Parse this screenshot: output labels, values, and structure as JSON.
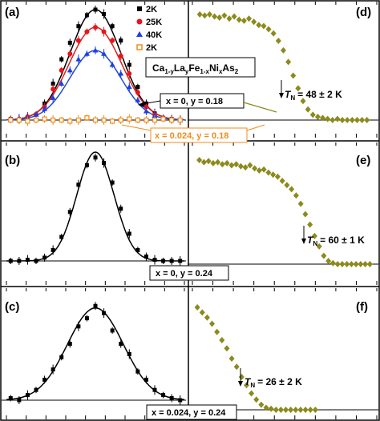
{
  "figure": {
    "compound_main": "Ca",
    "compound_parts": [
      {
        "t": "Ca",
        "sub": "1-y"
      },
      {
        "t": "La",
        "sub": "y"
      },
      {
        "t": "Fe",
        "sub": "1-x"
      },
      {
        "t": "Ni",
        "sub": "x"
      },
      {
        "t": "As",
        "sub": "2"
      }
    ],
    "label_a_sample": "x = 0, y = 0.18",
    "label_a2_sample": "x = 0.024, y = 0.18",
    "label_b_sample": "x = 0, y = 0.24",
    "label_c_sample": "x = 0.024, y = 0.24",
    "tn_d": "= 48 ± 2 K",
    "tn_e": "= 60 ± 1 K",
    "tn_f": "= 26 ± 2 K",
    "tn_symbol": "T",
    "tn_sub": "N",
    "colors": {
      "k2": "#000000",
      "k25": "#e8141c",
      "k40": "#1c3ee8",
      "k2b": "#f08c1a",
      "olive": "#8c8a1c",
      "fit_red": "#d8221c",
      "fit_blue": "#2450c8",
      "fit_black": "#000000"
    }
  },
  "chart_data": [
    {
      "type": "scatter",
      "panel": "(a)",
      "legend": [
        "2K",
        "25K",
        "40K",
        "2K"
      ],
      "legend_placement": "top-right",
      "series": [
        {
          "name": "2K",
          "marker": "square",
          "color": "#000000",
          "x": [
            -1.0,
            -0.9,
            -0.8,
            -0.7,
            -0.6,
            -0.5,
            -0.4,
            -0.3,
            -0.2,
            -0.1,
            0.0,
            0.1,
            0.2,
            0.3,
            0.4,
            0.5,
            0.6,
            0.7,
            0.8,
            0.9,
            1.0
          ],
          "y": [
            0.01,
            0.0,
            0.02,
            0.05,
            0.15,
            0.33,
            0.55,
            0.7,
            0.85,
            0.95,
            1.0,
            0.96,
            0.85,
            0.72,
            0.5,
            0.3,
            0.15,
            0.06,
            0.02,
            0.01,
            0.0
          ]
        },
        {
          "name": "25K",
          "marker": "circle",
          "color": "#e8141c",
          "x": [
            -1.0,
            -0.9,
            -0.8,
            -0.7,
            -0.6,
            -0.5,
            -0.4,
            -0.3,
            -0.2,
            -0.1,
            0.0,
            0.1,
            0.2,
            0.3,
            0.4,
            0.5,
            0.6,
            0.7,
            0.8,
            0.9,
            1.0
          ],
          "y": [
            0.01,
            0.01,
            0.03,
            0.05,
            0.12,
            0.28,
            0.45,
            0.6,
            0.72,
            0.8,
            0.84,
            0.8,
            0.72,
            0.58,
            0.42,
            0.25,
            0.12,
            0.05,
            0.02,
            0.01,
            0.0
          ]
        },
        {
          "name": "40K",
          "marker": "triangle",
          "color": "#1c3ee8",
          "x": [
            -1.0,
            -0.9,
            -0.8,
            -0.7,
            -0.6,
            -0.5,
            -0.4,
            -0.3,
            -0.2,
            -0.1,
            0.0,
            0.1,
            0.2,
            0.3,
            0.4,
            0.5,
            0.6,
            0.7,
            0.8,
            0.9,
            1.0
          ],
          "y": [
            0.0,
            0.02,
            0.02,
            0.05,
            0.1,
            0.2,
            0.33,
            0.45,
            0.55,
            0.6,
            0.63,
            0.6,
            0.5,
            0.42,
            0.3,
            0.18,
            0.08,
            0.04,
            0.02,
            0.01,
            0.0
          ]
        },
        {
          "name": "2K",
          "marker": "open-square",
          "color": "#f08c1a",
          "x": [
            -1.0,
            -0.9,
            -0.8,
            -0.7,
            -0.6,
            -0.5,
            -0.4,
            -0.3,
            -0.2,
            -0.1,
            0.0,
            0.1,
            0.2,
            0.3,
            0.4,
            0.5,
            0.6,
            0.7,
            0.8,
            0.9,
            1.0
          ],
          "y": [
            0.0,
            0.0,
            -0.01,
            0.0,
            0.01,
            0.0,
            0.0,
            -0.01,
            0.0,
            0.02,
            0.0,
            0.0,
            -0.01,
            0.0,
            0.01,
            0.0,
            0.0,
            0.0,
            0.01,
            0.0,
            0.0
          ]
        }
      ],
      "fits": [
        {
          "color": "#000000",
          "amp": 1.0,
          "sigma": 0.3
        },
        {
          "color": "#d8221c",
          "amp": 0.84,
          "sigma": 0.31
        },
        {
          "color": "#2450c8",
          "amp": 0.63,
          "sigma": 0.3
        }
      ]
    },
    {
      "type": "scatter",
      "panel": "(b)",
      "series": [
        {
          "name": "",
          "marker": "square",
          "color": "#000000",
          "x": [
            -1.0,
            -0.9,
            -0.8,
            -0.7,
            -0.6,
            -0.5,
            -0.4,
            -0.3,
            -0.2,
            -0.1,
            0.0,
            0.1,
            0.2,
            0.3,
            0.4,
            0.5,
            0.6,
            0.7,
            0.8,
            0.9,
            1.0
          ],
          "y": [
            0.0,
            0.0,
            0.01,
            0.0,
            0.03,
            0.1,
            0.22,
            0.45,
            0.7,
            0.88,
            0.95,
            0.9,
            0.72,
            0.48,
            0.25,
            0.1,
            0.04,
            0.01,
            0.0,
            0.0,
            0.0
          ]
        }
      ],
      "fits": [
        {
          "color": "#000000",
          "amp": 1.0,
          "sigma": 0.22
        }
      ]
    },
    {
      "type": "scatter",
      "panel": "(c)",
      "series": [
        {
          "name": "",
          "marker": "square",
          "color": "#000000",
          "x": [
            -1.0,
            -0.9,
            -0.8,
            -0.7,
            -0.6,
            -0.5,
            -0.4,
            -0.3,
            -0.2,
            -0.1,
            0.0,
            0.1,
            0.2,
            0.3,
            0.4,
            0.5,
            0.6,
            0.7,
            0.8,
            0.9,
            1.0
          ],
          "y": [
            0.02,
            0.0,
            0.05,
            0.1,
            0.2,
            0.3,
            0.42,
            0.55,
            0.72,
            0.8,
            0.92,
            0.85,
            0.68,
            0.55,
            0.45,
            0.28,
            0.2,
            0.1,
            0.05,
            0.02,
            0.0
          ]
        }
      ],
      "fits": [
        {
          "color": "#000000",
          "amp": 0.9,
          "sigma": 0.33
        }
      ]
    },
    {
      "type": "scatter",
      "panel": "(d)",
      "series": [
        {
          "name": "",
          "marker": "diamond",
          "color": "#8c8a1c",
          "x": [
            3,
            5,
            7,
            9,
            11,
            13,
            15,
            17,
            19,
            21,
            23,
            25,
            27,
            29,
            31,
            33,
            35,
            37,
            39,
            41,
            43,
            45,
            47,
            49,
            51,
            53,
            55,
            57,
            59,
            61,
            63,
            65,
            67,
            69,
            71
          ],
          "y": [
            1.0,
            0.99,
            1.0,
            0.98,
            0.97,
            0.99,
            0.96,
            0.98,
            0.95,
            0.94,
            0.96,
            0.93,
            0.9,
            0.89,
            0.86,
            0.82,
            0.75,
            0.66,
            0.55,
            0.42,
            0.3,
            0.18,
            0.1,
            0.05,
            0.03,
            0.02,
            0.01,
            0.0,
            0.01,
            0.0,
            0.0,
            0.0,
            0.0,
            0.0,
            0.0
          ]
        }
      ]
    },
    {
      "type": "scatter",
      "panel": "(e)",
      "series": [
        {
          "name": "",
          "marker": "diamond",
          "color": "#8c8a1c",
          "x": [
            3,
            5,
            7,
            9,
            11,
            13,
            15,
            17,
            19,
            21,
            23,
            25,
            27,
            29,
            31,
            33,
            35,
            37,
            39,
            41,
            43,
            45,
            47,
            49,
            51,
            53,
            55,
            57,
            59,
            61,
            63,
            65,
            67,
            69,
            71,
            73,
            75,
            77
          ],
          "y": [
            1.0,
            0.98,
            0.99,
            0.97,
            0.98,
            0.96,
            0.97,
            0.95,
            0.96,
            0.94,
            0.93,
            0.95,
            0.92,
            0.9,
            0.91,
            0.88,
            0.86,
            0.84,
            0.8,
            0.76,
            0.72,
            0.66,
            0.58,
            0.48,
            0.38,
            0.27,
            0.17,
            0.08,
            0.03,
            0.01,
            0.0,
            0.0,
            0.0,
            0.0,
            0.0,
            0.0,
            0.0,
            0.0
          ]
        }
      ]
    },
    {
      "type": "scatter",
      "panel": "(f)",
      "series": [
        {
          "name": "",
          "marker": "diamond",
          "color": "#8c8a1c",
          "x": [
            2,
            4,
            6,
            8,
            10,
            12,
            14,
            16,
            18,
            20,
            22,
            24,
            26,
            28,
            30,
            32,
            34,
            36,
            38,
            40,
            42,
            44,
            46,
            48,
            50
          ],
          "y": [
            1.0,
            0.95,
            0.9,
            0.84,
            0.76,
            0.68,
            0.6,
            0.5,
            0.42,
            0.32,
            0.24,
            0.16,
            0.1,
            0.05,
            0.02,
            0.01,
            0.0,
            0.0,
            0.0,
            0.0,
            0.0,
            0.0,
            0.0,
            0.0,
            0.0
          ]
        }
      ]
    }
  ]
}
